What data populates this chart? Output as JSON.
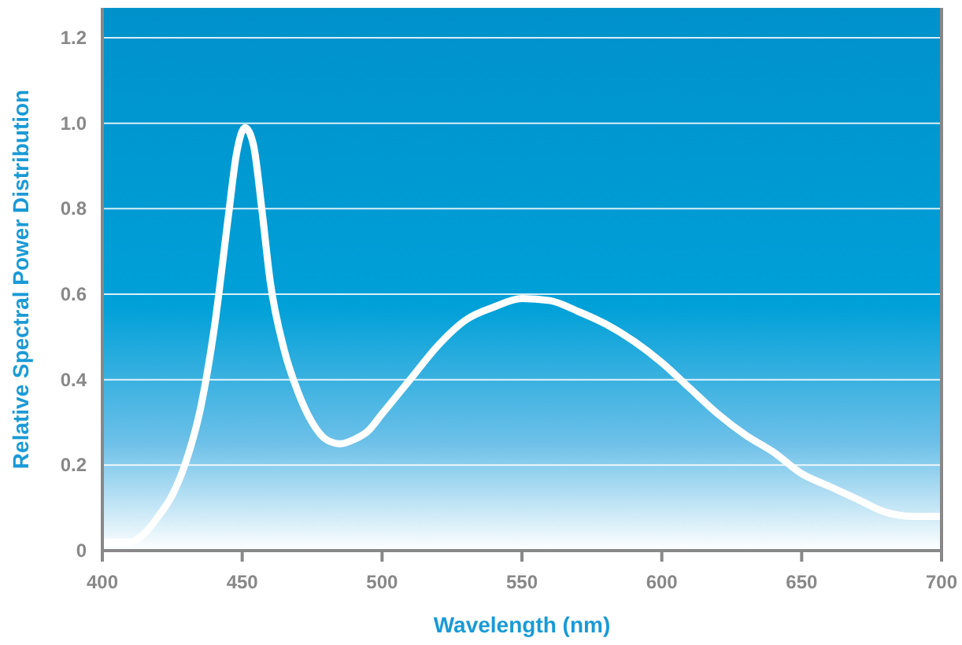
{
  "chart_data": {
    "type": "line",
    "xlabel": "Wavelength (nm)",
    "ylabel": "Relative Spectral Power Distribution",
    "xlim": [
      400,
      700
    ],
    "ylim": [
      0,
      1.27
    ],
    "xticks": [
      400,
      450,
      500,
      550,
      600,
      650,
      700
    ],
    "yticks": [
      0,
      0.2,
      0.4,
      0.6,
      0.8,
      {
        "value": 1,
        "label": "1.0"
      },
      1.2
    ],
    "grid": "y",
    "marker": "none",
    "line_style": "solid",
    "x": [
      400,
      410,
      415,
      420,
      425,
      430,
      435,
      440,
      445,
      448,
      451,
      454,
      457,
      460,
      465,
      470,
      475,
      480,
      485,
      490,
      495,
      500,
      510,
      520,
      530,
      540,
      550,
      560,
      570,
      580,
      590,
      600,
      610,
      620,
      630,
      640,
      650,
      660,
      670,
      680,
      690,
      700
    ],
    "series": [
      {
        "color": "#ffffff",
        "values": [
          0.02,
          0.02,
          0.04,
          0.08,
          0.13,
          0.21,
          0.33,
          0.52,
          0.78,
          0.93,
          0.99,
          0.95,
          0.8,
          0.63,
          0.47,
          0.37,
          0.3,
          0.26,
          0.25,
          0.26,
          0.28,
          0.32,
          0.4,
          0.48,
          0.54,
          0.57,
          0.59,
          0.585,
          0.56,
          0.53,
          0.49,
          0.44,
          0.38,
          0.32,
          0.27,
          0.23,
          0.18,
          0.15,
          0.12,
          0.09,
          0.08,
          0.08
        ]
      }
    ]
  }
}
